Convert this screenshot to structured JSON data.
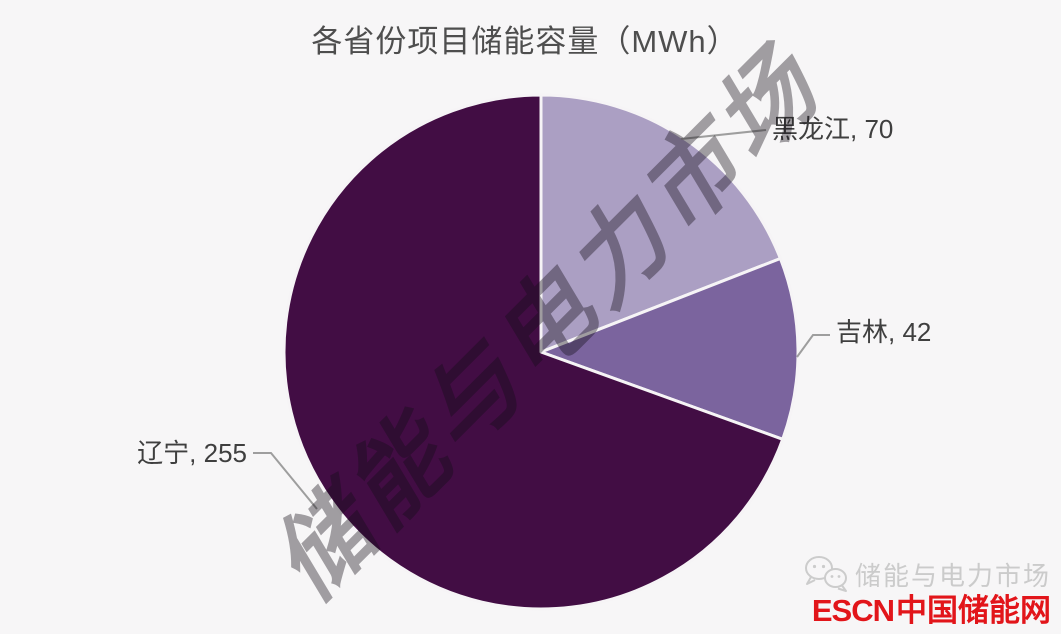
{
  "page": {
    "background": "#f7f6f7"
  },
  "chart_data": {
    "type": "pie",
    "title": "各省份项目储能容量（MWh）",
    "categories": [
      "黑龙江",
      "吉林",
      "辽宁"
    ],
    "values": [
      70,
      42,
      255
    ],
    "labels": [
      "黑龙江, 70",
      "吉林, 42",
      "辽宁, 255"
    ],
    "unit": "MWh",
    "colors": [
      "#ab9fc3",
      "#7b649e",
      "#420d44"
    ],
    "slice_border_color": "#f6f4f6",
    "leader_line_color": "#9e9e9e",
    "label_color": "#3f3f3f",
    "title_color": "#4e4e4e",
    "start_angle_deg": 0,
    "direction": "clockwise",
    "legend": "none"
  },
  "watermark": {
    "text": "储能与电力市场"
  },
  "footer": {
    "icon": "wechat-icon",
    "watermark_text": "储能与电力市场",
    "brand_latin": "ESCN",
    "brand_cn": "中国储能网",
    "brand_color": "#e2151a",
    "gray_color": "#cbcbcb"
  }
}
